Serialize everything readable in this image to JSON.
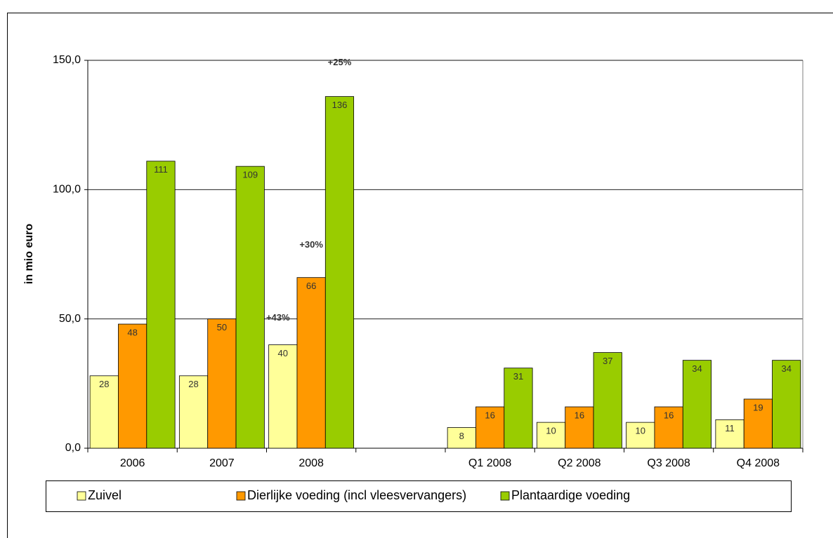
{
  "chart_data": {
    "type": "bar",
    "ylabel": "in mio euro",
    "categories": [
      "2006",
      "2007",
      "2008",
      null,
      "Q1 2008",
      "Q2 2008",
      "Q3 2008",
      "Q4 2008"
    ],
    "series": [
      {
        "name": "Zuivel",
        "color": "#ffff99",
        "values": [
          28,
          28,
          40,
          null,
          8,
          10,
          10,
          11
        ]
      },
      {
        "name": "Dierlijke voeding (incl vleesvervangers)",
        "color": "#ff9900",
        "values": [
          48,
          50,
          66,
          null,
          16,
          16,
          16,
          19
        ]
      },
      {
        "name": "Plantaardige voeding",
        "color": "#99cc00",
        "values": [
          111,
          109,
          136,
          null,
          31,
          37,
          34,
          34
        ]
      }
    ],
    "annotations": [
      "+43%",
      "+30%",
      "+25%"
    ],
    "ylim": [
      0,
      150
    ],
    "yticks": [
      {
        "value": 0,
        "label": "0,0"
      },
      {
        "value": 50,
        "label": "50,0"
      },
      {
        "value": 100,
        "label": "100,0"
      },
      {
        "value": 150,
        "label": "150,0"
      }
    ],
    "grid": true,
    "legend": "bottom"
  }
}
